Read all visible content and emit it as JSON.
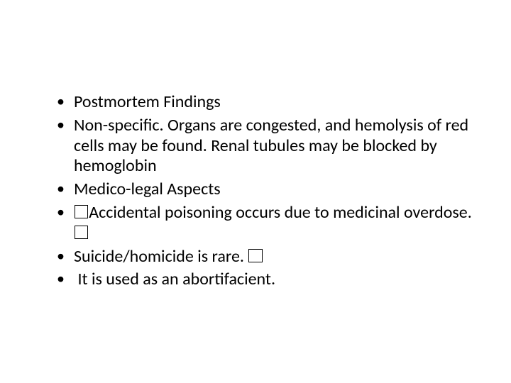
{
  "slide": {
    "background_color": "#ffffff",
    "text_color": "#000000",
    "font_family": "Calibri",
    "body_fontsize_pt": 24,
    "bullet_marker": "•",
    "bullets": [
      {
        "text": "Postmortem Findings"
      },
      {
        "text": "Non-specific. Organs are congested, and hemolysis of red cells may be found. Renal tubules may be blocked by hemoglobin"
      },
      {
        "text": "Medico-legal Aspects"
      },
      {
        "prefix_glyph": "box",
        "text": "Accidental poisoning occurs due to medicinal overdose. ",
        "suffix_glyph": "box"
      },
      {
        "text": "Suicide/homicide is rare. ",
        "suffix_glyph": "box"
      },
      {
        "leading_space": true,
        "text": "It is used as an abortifacient."
      }
    ]
  }
}
